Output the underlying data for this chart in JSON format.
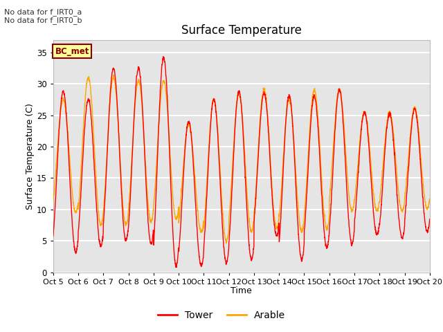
{
  "title": "Surface Temperature",
  "xlabel": "Time",
  "ylabel": "Surface Temperature (C)",
  "ylim": [
    0,
    37
  ],
  "yticks": [
    0,
    5,
    10,
    15,
    20,
    25,
    30,
    35
  ],
  "x_tick_labels": [
    "Oct 5",
    "Oct 6",
    "Oct 7",
    "Oct 8",
    "Oct 9",
    "Oct 10",
    "Oct 11",
    "Oct 12",
    "Oct 13",
    "Oct 14",
    "Oct 15",
    "Oct 16",
    "Oct 17",
    "Oct 18",
    "Oct 19",
    "Oct 20"
  ],
  "tower_color": "#FF0000",
  "arable_color": "#FFA500",
  "annotation_text": "No data for f_IRT0_a\nNo data for f_IRT0_b",
  "bc_met_label": "BC_met",
  "bc_met_bg": "#FFFF99",
  "bc_met_border": "#8B0000",
  "background_color": "#E5E5E5",
  "grid_color": "#FFFFFF",
  "num_days": 15,
  "samples_per_day": 144,
  "tower_daily_max": [
    28.8,
    27.5,
    32.5,
    32.5,
    34.2,
    24.0,
    27.5,
    28.8,
    28.5,
    28.2,
    28.0,
    29.0,
    25.5,
    25.2,
    26.0
  ],
  "tower_daily_min": [
    3.2,
    4.2,
    5.0,
    4.5,
    1.0,
    1.0,
    1.5,
    2.0,
    5.8,
    2.0,
    4.0,
    4.5,
    6.0,
    5.5,
    6.5
  ],
  "arable_daily_max": [
    27.5,
    31.0,
    31.0,
    30.5,
    30.5,
    23.5,
    27.5,
    28.5,
    29.2,
    27.5,
    29.0,
    29.2,
    25.5,
    25.5,
    26.2
  ],
  "arable_daily_min": [
    9.5,
    7.5,
    7.5,
    8.0,
    8.5,
    6.5,
    5.0,
    6.5,
    7.0,
    6.5,
    7.0,
    9.8,
    9.8,
    9.8,
    10.2
  ],
  "figure_width": 6.4,
  "figure_height": 4.8,
  "dpi": 100
}
